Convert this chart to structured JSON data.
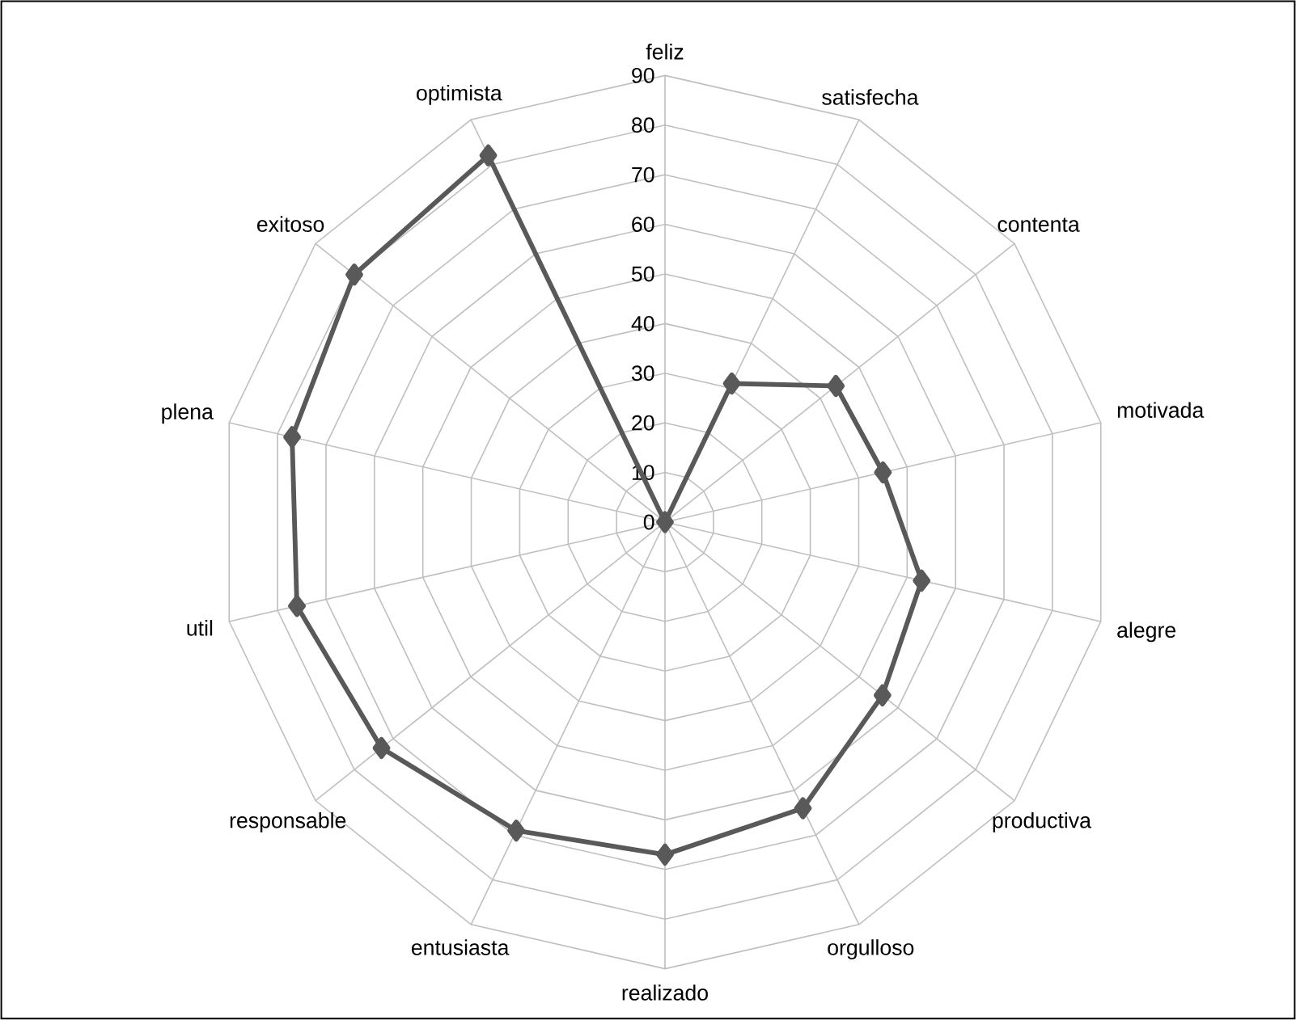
{
  "chart_data": {
    "type": "radar",
    "categories": [
      "feliz",
      "satisfecha",
      "contenta",
      "motivada",
      "alegre",
      "productiva",
      "orgulloso",
      "realizado",
      "entusiasta",
      "responsable",
      "util",
      "plena",
      "exitoso",
      "optimista"
    ],
    "series": [
      {
        "color": "#595959",
        "values": [
          0,
          31,
          44,
          45,
          53,
          56,
          64,
          67,
          69,
          73,
          76,
          77,
          80,
          82
        ]
      }
    ],
    "ylim": [
      0,
      90
    ],
    "yticks": [
      0,
      10,
      20,
      30,
      40,
      50,
      60,
      70,
      80,
      90
    ],
    "grid": true,
    "marker": "diamond",
    "line_style": "solid"
  }
}
